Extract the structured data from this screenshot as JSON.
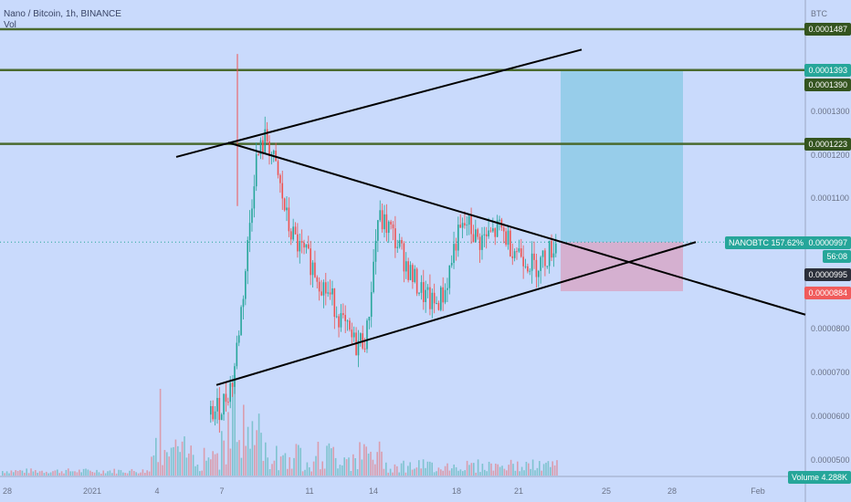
{
  "header": {
    "title": "Nano / Bitcoin, 1h, BINANCE",
    "volume_label": "Vol"
  },
  "price_axis": {
    "unit": "BTC",
    "ticks": [
      "0.0001300",
      "0.0001200",
      "0.0001100",
      "0.0000800",
      "0.0000700",
      "0.0000600",
      "0.0000500"
    ]
  },
  "time_axis": {
    "ticks": [
      "28",
      "2021",
      "4",
      "7",
      "11",
      "14",
      "18",
      "21",
      "25",
      "28",
      "Feb"
    ]
  },
  "price_tags": {
    "t1487": "0.0001487",
    "t1393": "0.0001393",
    "t1390": "0.0001390",
    "t1223": "0.0001223",
    "symbol": "NANOBTC 157.62%",
    "last": "0.0000997",
    "countdown": "56:08",
    "t995": "0.0000995",
    "stop": "0.0000884",
    "volume": "Volume 4.288K"
  },
  "colors": {
    "background": "#c9dafc",
    "level_line": "#4a6a2e",
    "level_tag": "#34541f",
    "up_candle": "#26a69a",
    "down_candle": "#ef5350",
    "target_zone": "#8ecae6",
    "stop_zone": "#d7a8c8",
    "symbol_tag": "#26a69a",
    "stop_tag": "#f05b5b"
  },
  "chart_data": {
    "type": "candlestick",
    "symbol": "NANOBTC",
    "interval": "1h",
    "ylim": [
      4.65e-05,
      0.00015
    ],
    "horizontal_levels": [
      0.0001487,
      0.0001393,
      0.0001223
    ],
    "trend_lines": [
      {
        "from": [
          "Jan 6",
          0.0001193
        ],
        "to": [
          "Jan 25",
          0.000144
        ]
      },
      {
        "from": [
          "Jan 7",
          0.0001226
        ],
        "to": [
          "Feb 2",
          8.3e-05
        ]
      },
      {
        "from": [
          "Jan 6",
          6.68e-05
        ],
        "to": [
          "Jan 29",
          9.97e-05
        ]
      }
    ],
    "position": {
      "entry": 9.97e-05,
      "target": 0.0001393,
      "stop": 8.84e-05
    },
    "last_price": 9.97e-05,
    "closes": [
      6e-05,
      6.2e-05,
      6.8e-05,
      9e-05,
      0.000118,
      0.000124,
      0.000115,
      0.000103,
      9.8e-05,
      9.5e-05,
      9e-05,
      8.6e-05,
      8e-05,
      7.6e-05,
      7.8e-05,
      0.000105,
      0.000103,
      9.8e-05,
      9.2e-05,
      8.8e-05,
      8.5e-05,
      8.8e-05,
      0.0001,
      0.000104,
      0.0001,
      0.000101,
      0.000103,
      9.9e-05,
      9.7e-05,
      9.4e-05,
      9.6e-05,
      9.97e-05
    ]
  }
}
